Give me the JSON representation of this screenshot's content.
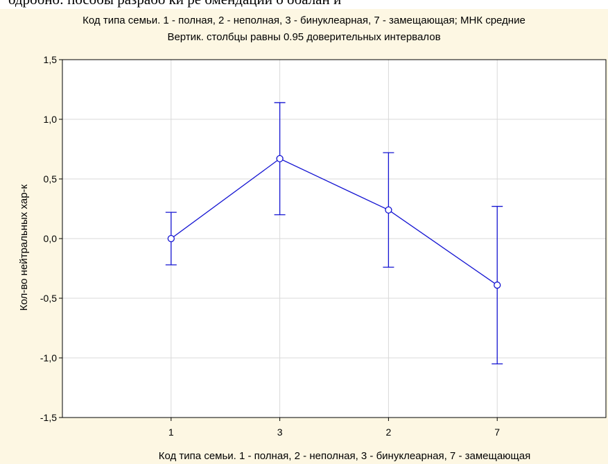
{
  "cutoff_text": "одробно:  пособы  разрабо ки  ре омендаций  о обалан и",
  "chart_data": {
    "type": "line",
    "title": "Код типа семьи. 1 - полная, 2 - неполная, 3 - бинуклеарная, 7 - замещающая; МНК средние",
    "subtitle": "Вертик. столбцы равны 0.95 доверительных интервалов",
    "xlabel": "Код типа семьи. 1 - полная, 2 - неполная, 3 - бинуклеарная, 7 - замещающая",
    "ylabel": "Кол-во нейтральных хар-к",
    "categories": [
      "1",
      "3",
      "2",
      "7"
    ],
    "series": [
      {
        "values": [
          0.0,
          0.67,
          0.24,
          -0.39
        ],
        "ci_lower": [
          -0.22,
          0.2,
          -0.24,
          -1.05
        ],
        "ci_upper": [
          0.22,
          1.14,
          0.72,
          0.27
        ]
      }
    ],
    "ylim": [
      -1.5,
      1.5
    ],
    "yticks": [
      -1.5,
      -1.0,
      -0.5,
      0.0,
      0.5,
      1.0,
      1.5
    ],
    "ytick_labels": [
      "-1,5",
      "-1,0",
      "-0,5",
      "0,0",
      "0,5",
      "1,0",
      "1,5"
    ],
    "grid": true,
    "line_color": "#1414d2",
    "background_color": "#fdf7e3"
  }
}
